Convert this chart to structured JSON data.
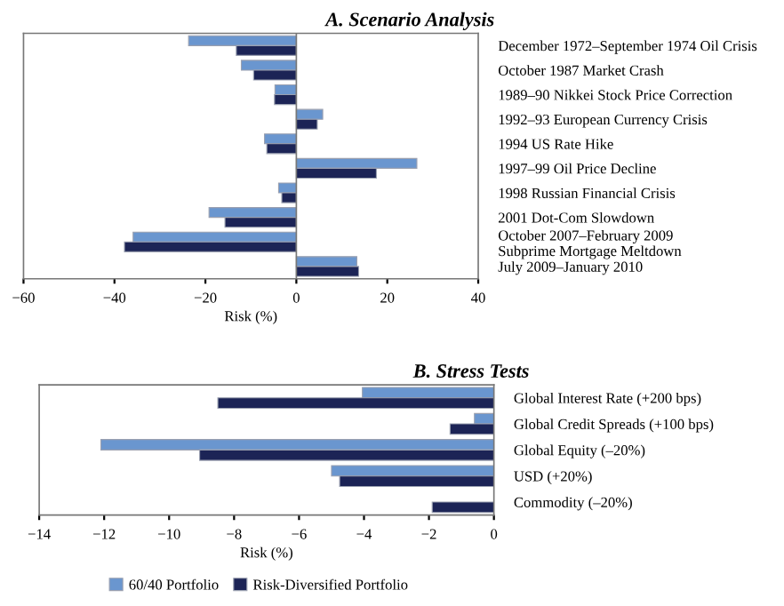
{
  "chart_data": [
    {
      "type": "bar",
      "orientation": "horizontal",
      "title": "A. Scenario Analysis",
      "xlabel": "Risk (%)",
      "categories": [
        "December 1972–September 1974 Oil Crisis",
        "October 1987 Market Crash",
        "1989–90 Nikkei Stock Price Correction",
        "1992–93 European Currency Crisis",
        "1994 US Rate Hike",
        "1997–99 Oil Price Decline",
        "1998 Russian Financial Crisis",
        "2001 Dot-Com Slowdown",
        "October 2007–February 2009\nSubprime Mortgage Meltdown",
        "July 2009–January 2010"
      ],
      "series": [
        {
          "name": "60/40 Portfolio",
          "color": "#6a96cf",
          "values": [
            -23.7,
            -12.1,
            -4.7,
            5.8,
            -7.0,
            26.5,
            -3.9,
            -19.2,
            -35.9,
            13.3
          ]
        },
        {
          "name": "Risk-Diversified Portfolio",
          "color": "#1c2456",
          "values": [
            -13.2,
            -9.4,
            -4.8,
            4.6,
            -6.5,
            17.6,
            -3.2,
            -15.7,
            -37.8,
            13.7
          ]
        }
      ],
      "xlim": [
        -60,
        40
      ],
      "xticks": [
        -60,
        -40,
        -20,
        0,
        20,
        40
      ],
      "ref_lines": [
        {
          "axis": "x",
          "value": 0
        }
      ],
      "legend": "bottom"
    },
    {
      "type": "bar",
      "orientation": "horizontal",
      "title": "B. Stress Tests",
      "xlabel": "Risk (%)",
      "categories": [
        "Global Interest Rate (+200 bps)",
        "Global Credit Spreads (+100 bps)",
        "Global Equity (–20%)",
        "USD (+20%)",
        "Commodity (–20%)"
      ],
      "series": [
        {
          "name": "60/40 Portfolio",
          "color": "#6a96cf",
          "values": [
            -4.05,
            -0.6,
            -12.1,
            -5.0,
            null
          ]
        },
        {
          "name": "Risk-Diversified Portfolio",
          "color": "#1c2456",
          "values": [
            -8.5,
            -1.35,
            -9.06,
            -4.75,
            -1.9
          ]
        }
      ],
      "xlim": [
        -14,
        0
      ],
      "xticks": [
        -14,
        -12,
        -10,
        -8,
        -6,
        -4,
        -2,
        0
      ],
      "legend": "bottom"
    }
  ]
}
